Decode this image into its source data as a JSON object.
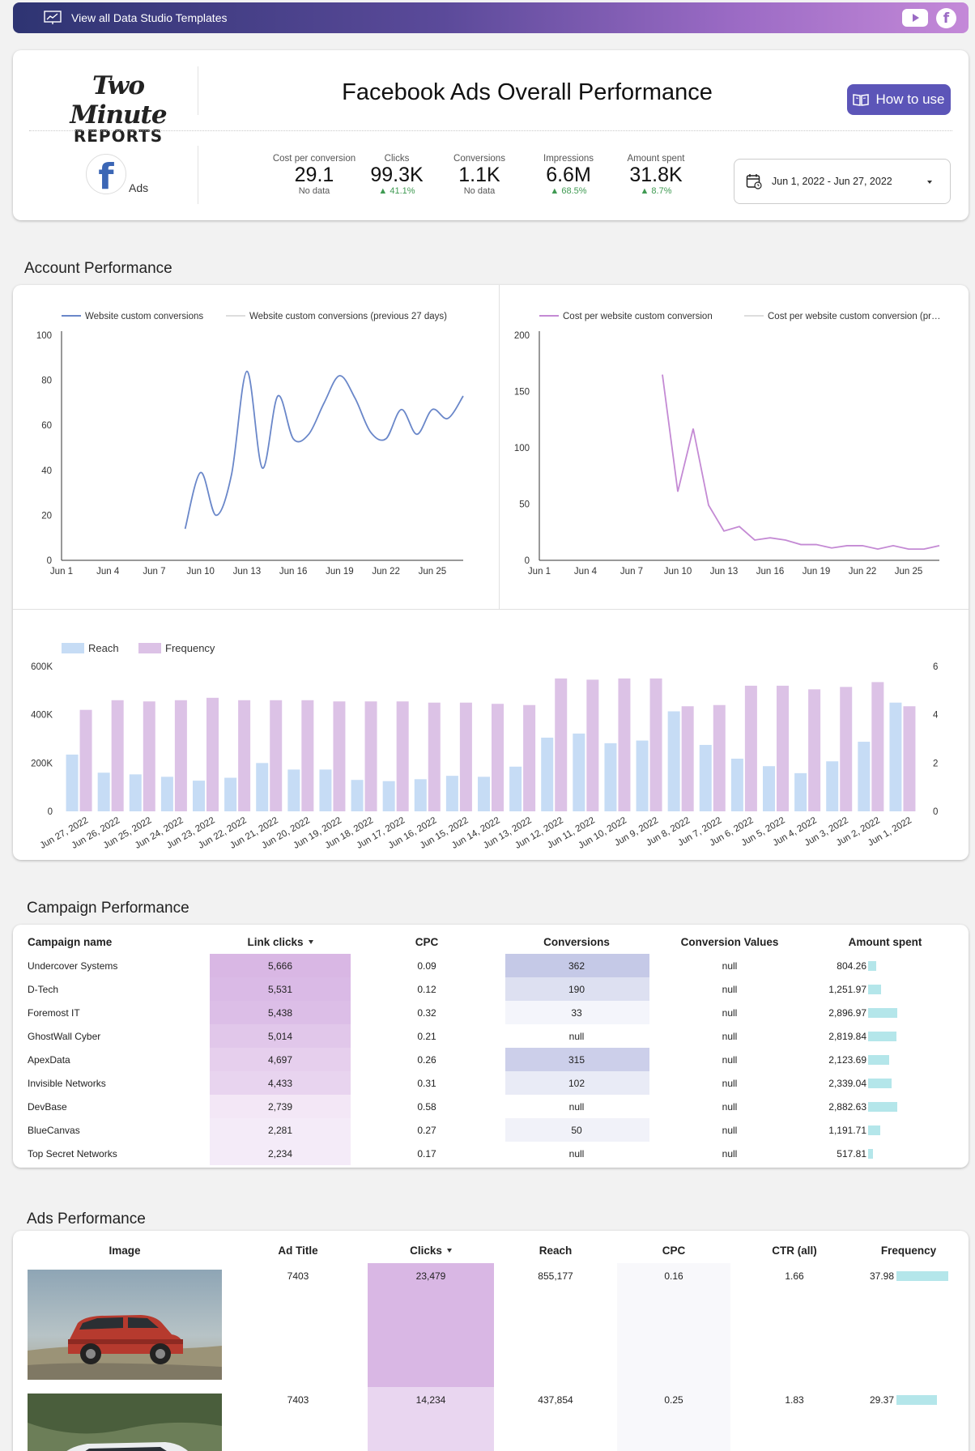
{
  "banner": {
    "text": "View all Data Studio Templates",
    "icon": "chart-presentation-icon"
  },
  "header": {
    "logo_line1": "Two Minute",
    "logo_line2": "REPORTS",
    "title": "Facebook Ads Overall Performance",
    "howto_label": "How to use",
    "source_label": "Ads",
    "date_range": "Jun 1, 2022 - Jun 27, 2022",
    "metrics": [
      {
        "label": "Cost per conversion",
        "value": "29.1",
        "delta": "No data",
        "up": false
      },
      {
        "label": "Clicks",
        "value": "99.3K",
        "delta": "41.1%",
        "up": true
      },
      {
        "label": "Conversions",
        "value": "1.1K",
        "delta": "No data",
        "up": false
      },
      {
        "label": "Impressions",
        "value": "6.6M",
        "delta": "68.5%",
        "up": true
      },
      {
        "label": "Amount spent",
        "value": "31.8K",
        "delta": "8.7%",
        "up": true
      }
    ]
  },
  "sections": {
    "account": "Account Performance",
    "campaign": "Campaign Performance",
    "ads": "Ads Performance"
  },
  "colors": {
    "blue_line": "#6a87c9",
    "purple_line": "#c48ad4",
    "reach_bar": "#c6dcf5",
    "freq_bar": "#dcc2e6",
    "accent": "#5c55b8",
    "databar": "#b4e6ea"
  },
  "chart_data": [
    {
      "type": "line",
      "legend": [
        "Website custom conversions",
        "Website custom conversions (previous 27 days)"
      ],
      "x_ticks": [
        "Jun 1",
        "Jun 4",
        "Jun 7",
        "Jun 10",
        "Jun 13",
        "Jun 16",
        "Jun 19",
        "Jun 22",
        "Jun 25"
      ],
      "y_ticks": [
        0,
        20,
        40,
        60,
        80,
        100
      ],
      "ylim": [
        0,
        100
      ],
      "xlim": [
        1,
        27
      ],
      "series": [
        {
          "name": "Website custom conversions",
          "x": [
            9,
            10,
            11,
            12,
            13,
            14,
            15,
            16,
            17,
            18,
            19,
            20,
            21,
            22,
            23,
            24,
            25,
            26,
            27
          ],
          "values": [
            14,
            39,
            20,
            38,
            84,
            41,
            73,
            54,
            56,
            70,
            82,
            72,
            57,
            54,
            67,
            56,
            67,
            63,
            73
          ]
        }
      ]
    },
    {
      "type": "line",
      "legend": [
        "Cost per website custom conversion",
        "Cost per website custom conversion (pr…"
      ],
      "x_ticks": [
        "Jun 1",
        "Jun 4",
        "Jun 7",
        "Jun 10",
        "Jun 13",
        "Jun 16",
        "Jun 19",
        "Jun 22",
        "Jun 25"
      ],
      "y_ticks": [
        0,
        50,
        100,
        150,
        200
      ],
      "ylim": [
        0,
        200
      ],
      "xlim": [
        1,
        27
      ],
      "series": [
        {
          "name": "Cost per website custom conversion",
          "x": [
            9,
            10,
            11,
            12,
            13,
            14,
            15,
            16,
            17,
            18,
            19,
            20,
            21,
            22,
            23,
            24,
            25,
            26,
            27
          ],
          "values": [
            165,
            61,
            117,
            49,
            26,
            30,
            18,
            20,
            18,
            14,
            14,
            11,
            13,
            13,
            10,
            13,
            10,
            10,
            13
          ]
        }
      ]
    },
    {
      "type": "bar",
      "legend": [
        "Reach",
        "Frequency"
      ],
      "categories": [
        "Jun 27, 2022",
        "Jun 26, 2022",
        "Jun 25, 2022",
        "Jun 24, 2022",
        "Jun 23, 2022",
        "Jun 22, 2022",
        "Jun 21, 2022",
        "Jun 20, 2022",
        "Jun 19, 2022",
        "Jun 18, 2022",
        "Jun 17, 2022",
        "Jun 16, 2022",
        "Jun 15, 2022",
        "Jun 14, 2022",
        "Jun 13, 2022",
        "Jun 12, 2022",
        "Jun 11, 2022",
        "Jun 10, 2022",
        "Jun 9, 2022",
        "Jun 8, 2022",
        "Jun 7, 2022",
        "Jun 6, 2022",
        "Jun 5, 2022",
        "Jun 4, 2022",
        "Jun 3, 2022",
        "Jun 2, 2022",
        "Jun 1, 2022"
      ],
      "y_left_ticks": [
        "0",
        "200K",
        "400K",
        "600K"
      ],
      "y_right_ticks": [
        "0",
        "2",
        "4",
        "6"
      ],
      "ylim_left": [
        0,
        600000
      ],
      "ylim_right": [
        0,
        6
      ],
      "series": [
        {
          "name": "Reach",
          "axis": "left",
          "values": [
            235000,
            160000,
            153000,
            143000,
            127000,
            139000,
            200000,
            173000,
            173000,
            130000,
            125000,
            133000,
            147000,
            143000,
            185000,
            305000,
            322000,
            282000,
            293000,
            414000,
            275000,
            218000,
            187000,
            158000,
            207000,
            288000,
            450000
          ]
        },
        {
          "name": "Frequency",
          "axis": "right",
          "values": [
            4.2,
            4.6,
            4.55,
            4.6,
            4.7,
            4.6,
            4.6,
            4.6,
            4.55,
            4.55,
            4.55,
            4.5,
            4.5,
            4.45,
            4.4,
            5.5,
            5.45,
            5.5,
            5.5,
            4.35,
            4.4,
            5.2,
            5.2,
            5.05,
            5.15,
            5.35,
            4.35
          ]
        }
      ]
    }
  ],
  "campaign_table": {
    "headers": [
      "Campaign name",
      "Link clicks",
      "CPC",
      "Conversions",
      "Conversion Values",
      "Amount spent"
    ],
    "rows": [
      {
        "name": "Undercover Systems",
        "clicks": "5,666",
        "clicks_n": 5666,
        "cpc": "0.09",
        "conv": "362",
        "conv_n": 362,
        "cv": "null",
        "spent": "804.26",
        "spent_n": 804.26
      },
      {
        "name": "D-Tech",
        "clicks": "5,531",
        "clicks_n": 5531,
        "cpc": "0.12",
        "conv": "190",
        "conv_n": 190,
        "cv": "null",
        "spent": "1,251.97",
        "spent_n": 1251.97
      },
      {
        "name": "Foremost IT",
        "clicks": "5,438",
        "clicks_n": 5438,
        "cpc": "0.32",
        "conv": "33",
        "conv_n": 33,
        "cv": "null",
        "spent": "2,896.97",
        "spent_n": 2896.97
      },
      {
        "name": "GhostWall Cyber",
        "clicks": "5,014",
        "clicks_n": 5014,
        "cpc": "0.21",
        "conv": "null",
        "conv_n": 0,
        "cv": "null",
        "spent": "2,819.84",
        "spent_n": 2819.84
      },
      {
        "name": "ApexData",
        "clicks": "4,697",
        "clicks_n": 4697,
        "cpc": "0.26",
        "conv": "315",
        "conv_n": 315,
        "cv": "null",
        "spent": "2,123.69",
        "spent_n": 2123.69
      },
      {
        "name": "Invisible Networks",
        "clicks": "4,433",
        "clicks_n": 4433,
        "cpc": "0.31",
        "conv": "102",
        "conv_n": 102,
        "cv": "null",
        "spent": "2,339.04",
        "spent_n": 2339.04
      },
      {
        "name": "DevBase",
        "clicks": "2,739",
        "clicks_n": 2739,
        "cpc": "0.58",
        "conv": "null",
        "conv_n": 0,
        "cv": "null",
        "spent": "2,882.63",
        "spent_n": 2882.63
      },
      {
        "name": "BlueCanvas",
        "clicks": "2,281",
        "clicks_n": 2281,
        "cpc": "0.27",
        "conv": "50",
        "conv_n": 50,
        "cv": "null",
        "spent": "1,191.71",
        "spent_n": 1191.71
      },
      {
        "name": "Top Secret Networks",
        "clicks": "2,234",
        "clicks_n": 2234,
        "cpc": "0.17",
        "conv": "null",
        "conv_n": 0,
        "cv": "null",
        "spent": "517.81",
        "spent_n": 517.81
      }
    ]
  },
  "ads_table": {
    "headers": [
      "Image",
      "Ad Title",
      "Clicks",
      "Reach",
      "CPC",
      "CTR (all)",
      "Frequency"
    ],
    "rows": [
      {
        "title": "7403",
        "clicks": "23,479",
        "clicks_n": 23479,
        "reach": "855,177",
        "cpc": "0.16",
        "ctr": "1.66",
        "freq": "37.98",
        "freq_n": 37.98,
        "image": "red-suv-photo"
      },
      {
        "title": "7403",
        "clicks": "14,234",
        "clicks_n": 14234,
        "reach": "437,854",
        "cpc": "0.25",
        "ctr": "1.83",
        "freq": "29.37",
        "freq_n": 29.37,
        "image": "white-suv-photo"
      }
    ]
  }
}
